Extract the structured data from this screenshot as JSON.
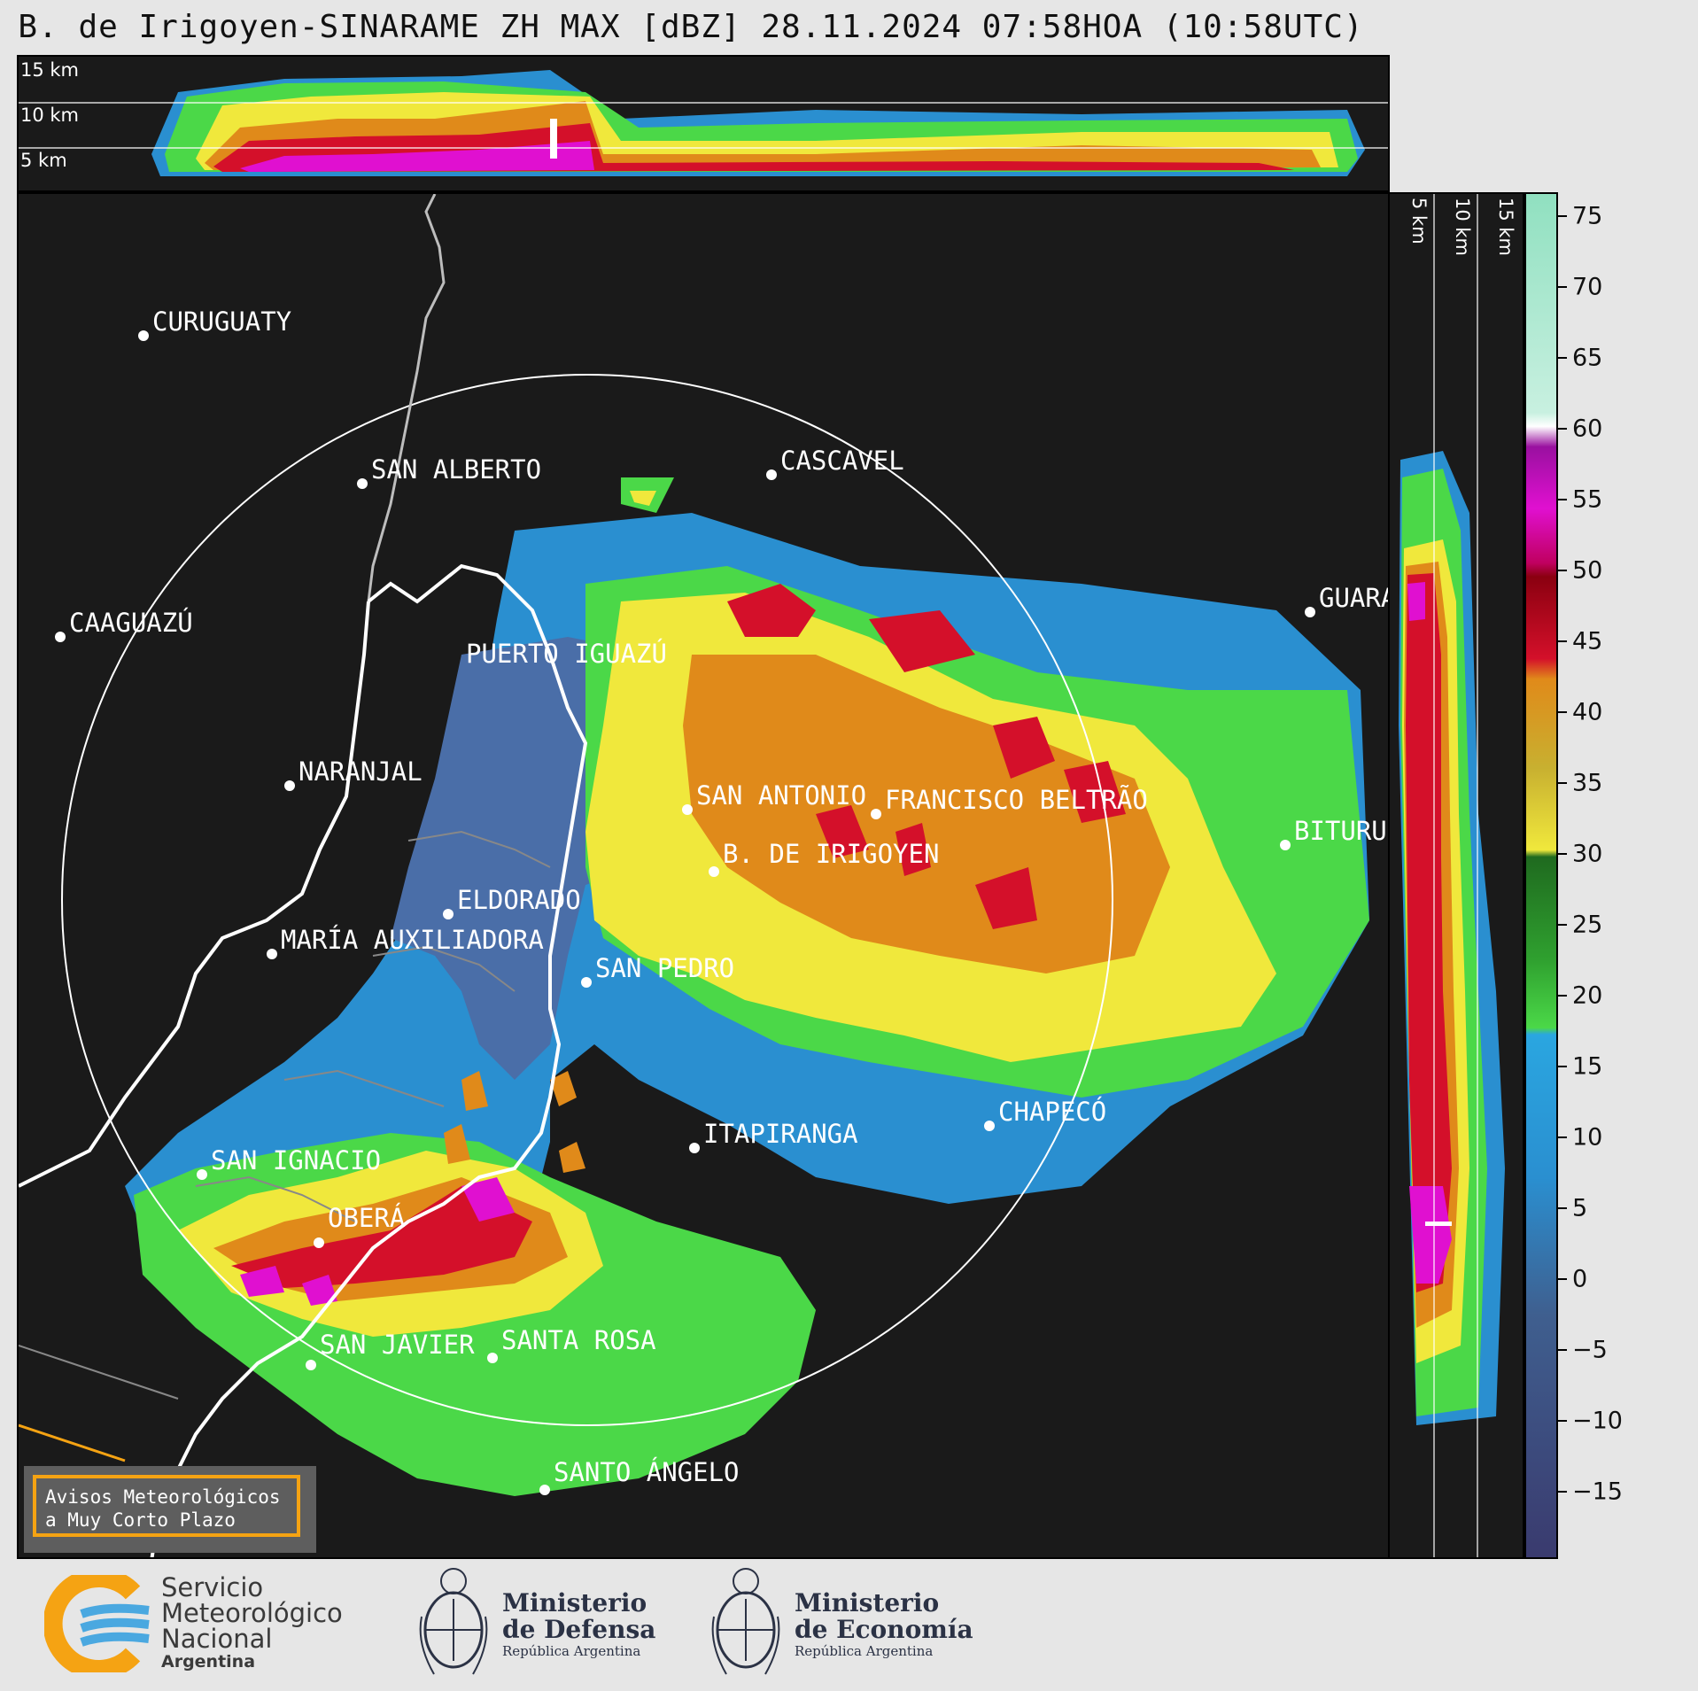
{
  "title": "B. de Irigoyen-SINARAME ZH MAX [dBZ] 28.11.2024 07:58HOA (10:58UTC)",
  "top_panel": {
    "altitude_labels": [
      "15 km",
      "10 km",
      "5 km"
    ]
  },
  "side_panel": {
    "altitude_labels": [
      "5 km",
      "10 km",
      "15 km"
    ]
  },
  "colorbar": {
    "unit": "dBZ",
    "ticks": [
      "75",
      "70",
      "65",
      "60",
      "55",
      "50",
      "45",
      "40",
      "35",
      "30",
      "25",
      "20",
      "15",
      "10",
      "5",
      "0",
      "−5",
      "−10",
      "−15"
    ],
    "colors": {
      "purple_dark": "#3a3a6e",
      "blue_gray": "#3f5f8f",
      "blue": "#2a8fd0",
      "cyan": "#2aa6e0",
      "green_light": "#4bd848",
      "green_dark": "#1f6a1f",
      "yellow": "#f0e83c",
      "orange": "#e08a1a",
      "red": "#d4102a",
      "dark_red": "#8a0010",
      "magenta": "#e010d0",
      "purple": "#9a10a0",
      "white": "#ffffff",
      "mint": "#90e0c0"
    }
  },
  "map": {
    "radar_site": "B. DE IRIGOYEN",
    "cities": [
      {
        "name": "CURUGUATY"
      },
      {
        "name": "SAN ALBERTO"
      },
      {
        "name": "CAAGUAZÚ"
      },
      {
        "name": "CASCAVEL"
      },
      {
        "name": "GUARA"
      },
      {
        "name": "PUERTO IGUAZÚ"
      },
      {
        "name": "NARANJAL"
      },
      {
        "name": "SAN ANTONIO"
      },
      {
        "name": "FRANCISCO BELTRÃO"
      },
      {
        "name": "B. DE IRIGOYEN"
      },
      {
        "name": "BITURU"
      },
      {
        "name": "ELDORADO"
      },
      {
        "name": "MARÍA AUXILIADORA"
      },
      {
        "name": "SAN PEDRO"
      },
      {
        "name": "CHAPECÓ"
      },
      {
        "name": "ITAPIRANGA"
      },
      {
        "name": "SAN IGNACIO"
      },
      {
        "name": "OBERÁ"
      },
      {
        "name": "SAN JAVIER"
      },
      {
        "name": "SANTA ROSA"
      },
      {
        "name": "SANTO ÁNGELO"
      }
    ]
  },
  "warning": {
    "line1": "Avisos Meteorológicos",
    "line2": "a Muy Corto Plazo"
  },
  "footer": {
    "smn": {
      "line1": "Servicio",
      "line2": "Meteorológico",
      "line3": "Nacional",
      "line4": "Argentina"
    },
    "defensa": {
      "line1": "Ministerio",
      "line2": "de Defensa",
      "line3": "República Argentina"
    },
    "economia": {
      "line1": "Ministerio",
      "line2": "de Economía",
      "line3": "República Argentina"
    }
  }
}
